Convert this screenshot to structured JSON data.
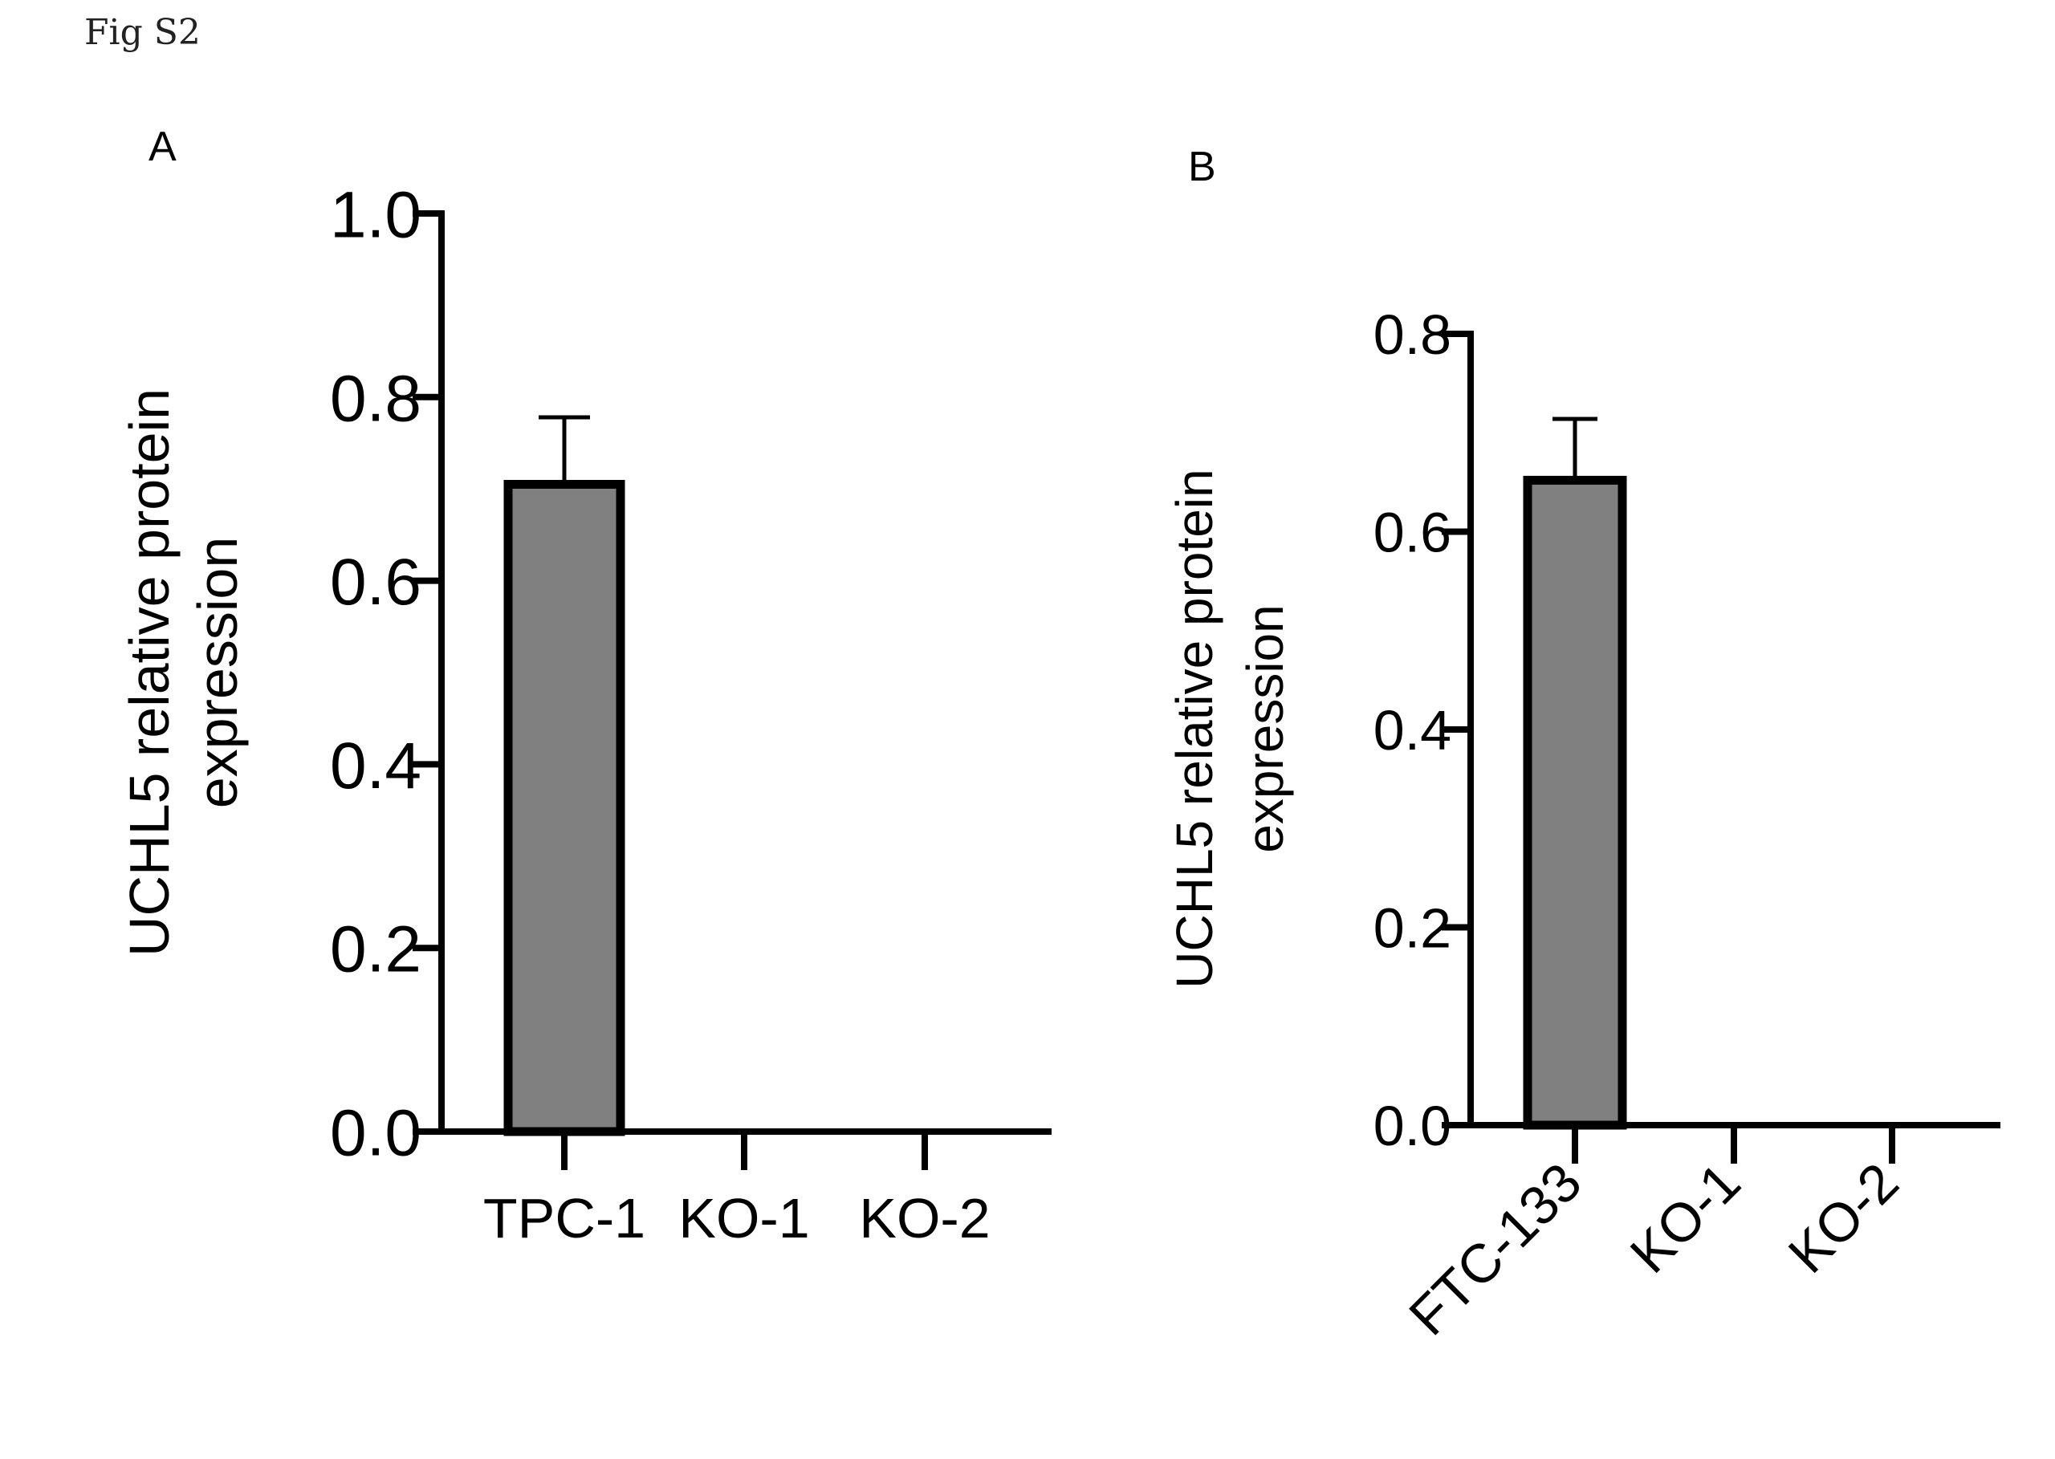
{
  "figure": {
    "label": "Fig S2"
  },
  "chart_data": [
    {
      "type": "bar",
      "panel": "A",
      "categories": [
        "TPC-1",
        "KO-1",
        "KO-2"
      ],
      "values": [
        0.705,
        0,
        0
      ],
      "error": [
        0.073,
        0,
        0
      ],
      "ylabel_line1": "UCHL5 relative protein",
      "ylabel_line2": "expression",
      "ylim": [
        0,
        1.0
      ],
      "yticks": [
        0.0,
        0.2,
        0.4,
        0.6,
        0.8,
        1.0
      ],
      "ytick_labels": [
        "0.0",
        "0.2",
        "0.4",
        "0.6",
        "0.8",
        "1.0"
      ],
      "bar_color": "#808080",
      "label_rotation": 0
    },
    {
      "type": "bar",
      "panel": "B",
      "categories": [
        "FTC-133",
        "KO-1",
        "KO-2"
      ],
      "values": [
        0.652,
        0,
        0
      ],
      "error": [
        0.062,
        0,
        0
      ],
      "ylabel_line1": "UCHL5 relative protein",
      "ylabel_line2": "expression",
      "ylim": [
        0,
        0.8
      ],
      "yticks": [
        0.0,
        0.2,
        0.4,
        0.6,
        0.8
      ],
      "ytick_labels": [
        "0.0",
        "0.2",
        "0.4",
        "0.6",
        "0.8"
      ],
      "bar_color": "#808080",
      "label_rotation": -45
    }
  ]
}
